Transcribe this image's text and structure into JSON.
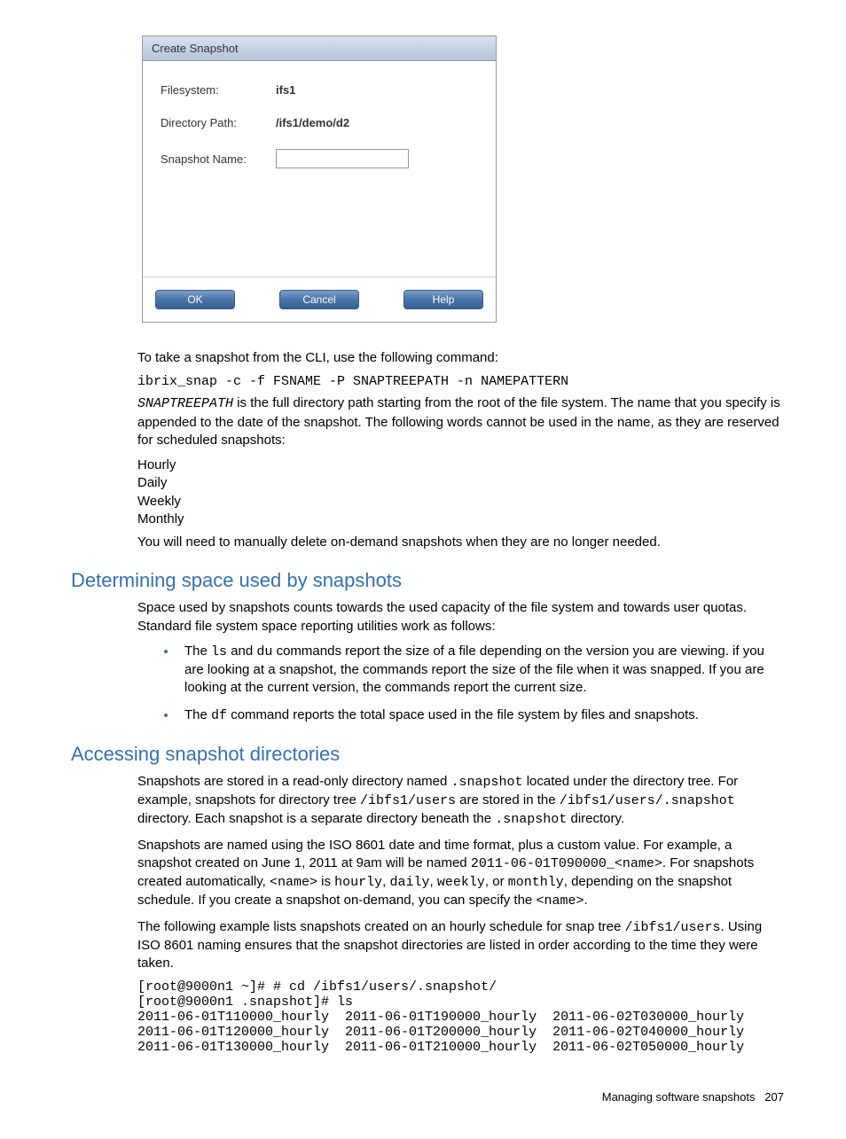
{
  "dialog": {
    "title": "Create Snapshot",
    "rows": {
      "filesystem_label": "Filesystem:",
      "filesystem_value": "ifs1",
      "dirpath_label": "Directory Path:",
      "dirpath_value": "/ifs1/demo/d2",
      "snapname_label": "Snapshot Name:"
    },
    "buttons": {
      "ok": "OK",
      "cancel": "Cancel",
      "help": "Help"
    }
  },
  "text": {
    "cli_intro": "To take a snapshot from the CLI, use the following command:",
    "cli_cmd": "ibrix_snap -c -f FSNAME -P SNAPTREEPATH -n NAMEPATTERN",
    "snaptreepath_code": "SNAPTREEPATH",
    "snaptreepath_rest": " is the full directory path starting from the root of the file system. The name that you specify is appended to the date of the snapshot. The following words cannot be used in the name, as they are reserved for scheduled snapshots:",
    "reserved": [
      "Hourly",
      "Daily",
      "Weekly",
      "Monthly"
    ],
    "manual_delete": "You will need to manually delete on-demand snapshots when they are no longer needed."
  },
  "section_space": {
    "heading": "Determining space used by snapshots",
    "intro": "Space used by snapshots counts towards the used capacity of the file system and towards user quotas. Standard file system space reporting utilities work as follows:",
    "bullet1_pre": "The ",
    "bullet1_code1": "ls",
    "bullet1_mid": " and ",
    "bullet1_code2": "du",
    "bullet1_post": " commands report the size of a file depending on the version you are viewing. if you are looking at a snapshot, the commands report the size of the file when it was snapped. If you are looking at the current version, the commands report the current size.",
    "bullet2_pre": "The ",
    "bullet2_code": "df",
    "bullet2_post": " command reports the total space used in the file system by files and snapshots."
  },
  "section_access": {
    "heading": "Accessing snapshot directories",
    "p1_a": "Snapshots are stored in a read-only directory named ",
    "p1_code1": ".snapshot",
    "p1_b": " located under the directory tree. For example, snapshots for directory tree ",
    "p1_code2": "/ibfs1/users",
    "p1_c": " are stored in the ",
    "p1_code3": "/ibfs1/users/.snapshot",
    "p1_d": " directory. Each snapshot is a separate directory beneath the ",
    "p1_code4": ".snapshot",
    "p1_e": " directory.",
    "p2_a": "Snapshots are named using the ISO 8601 date and time format, plus a custom value. For example, a snapshot created on June 1, 2011 at 9am will be named ",
    "p2_code1": "2011-06-01T090000_<name>",
    "p2_b": ". For snapshots created automatically, ",
    "p2_code2": "<name>",
    "p2_c": " is ",
    "p2_code3": "hourly",
    "p2_d": ", ",
    "p2_code4": "daily",
    "p2_e": ", ",
    "p2_code5": "weekly",
    "p2_f": ", or ",
    "p2_code6": "monthly",
    "p2_g": ", depending on the snapshot schedule. If you create a snapshot on-demand, you can specify the ",
    "p2_code7": "<name>",
    "p2_h": ".",
    "p3_a": "The following example lists snapshots created on an hourly schedule for snap tree ",
    "p3_code1": "/ibfs1/users",
    "p3_b": ". Using ISO 8601 naming ensures that the snapshot directories are listed in order according to the time they were taken.",
    "terminal": "[root@9000n1 ~]# # cd /ibfs1/users/.snapshot/\n[root@9000n1 .snapshot]# ls\n2011-06-01T110000_hourly  2011-06-01T190000_hourly  2011-06-02T030000_hourly\n2011-06-01T120000_hourly  2011-06-01T200000_hourly  2011-06-02T040000_hourly\n2011-06-01T130000_hourly  2011-06-01T210000_hourly  2011-06-02T050000_hourly"
  },
  "footer": {
    "text": "Managing software snapshots",
    "page": "207"
  }
}
